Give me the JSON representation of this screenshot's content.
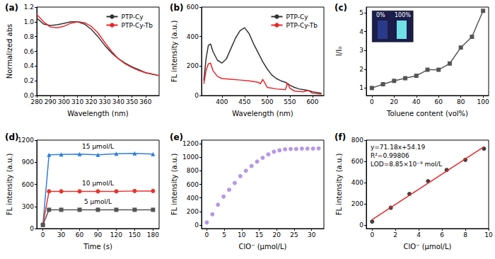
{
  "chart_data": [
    {
      "type": "line",
      "title": "(a)",
      "xlabel": "Wavelength (nm)",
      "ylabel": "Normalized abs",
      "xlim": [
        280,
        370
      ],
      "xticks": [
        280,
        290,
        300,
        310,
        320,
        330,
        340,
        350,
        360
      ],
      "ylim": [
        0,
        1.2
      ],
      "yticks": [
        {
          "value": 0,
          "label": "0.0"
        },
        {
          "value": 0.2,
          "label": "0.2"
        },
        {
          "value": 0.4,
          "label": "0.4"
        },
        {
          "value": 0.6,
          "label": "0.6"
        },
        {
          "value": 0.8,
          "label": "0.8"
        },
        {
          "value": 1.0,
          "label": "1.0"
        },
        {
          "value": 1.2,
          "label": "1.2"
        }
      ],
      "legend": "upper right",
      "grid": false,
      "x": [
        280,
        285,
        290,
        295,
        300,
        305,
        310,
        315,
        320,
        325,
        330,
        335,
        340,
        345,
        350,
        355,
        360,
        365,
        370
      ],
      "series": [
        {
          "name": "PTP-Cy",
          "color": "#333333",
          "marker": "none",
          "values": [
            1.05,
            0.97,
            0.95,
            0.96,
            0.98,
            1.0,
            1.0,
            0.97,
            0.9,
            0.8,
            0.68,
            0.58,
            0.5,
            0.44,
            0.39,
            0.35,
            0.31,
            0.29,
            0.27
          ]
        },
        {
          "name": "PTP-Cy-Tb",
          "color": "#e8262b",
          "marker": "none",
          "values": [
            1.1,
            1.0,
            0.93,
            0.92,
            0.94,
            0.98,
            1.0,
            0.99,
            0.94,
            0.85,
            0.72,
            0.6,
            0.5,
            0.43,
            0.38,
            0.34,
            0.31,
            0.29,
            0.27
          ]
        }
      ]
    },
    {
      "type": "line",
      "title": "(b)",
      "xlabel": "Wavelength (nm)",
      "ylabel": "FL intensity (a.u.)",
      "xlim": [
        355,
        625
      ],
      "xticks": [
        400,
        450,
        500,
        550,
        600
      ],
      "ylim": [
        0,
        600
      ],
      "yticks": [
        0,
        200,
        400,
        600
      ],
      "legend": "upper right",
      "grid": false,
      "series": [
        {
          "name": "PTP-Cy",
          "color": "#333333",
          "marker": "none",
          "x": [
            360,
            365,
            370,
            375,
            380,
            390,
            400,
            410,
            420,
            430,
            440,
            450,
            460,
            470,
            480,
            490,
            500,
            510,
            520,
            530,
            540,
            545,
            550,
            560,
            570,
            580,
            590,
            600,
            610,
            620
          ],
          "values": [
            100,
            250,
            340,
            350,
            300,
            240,
            220,
            250,
            320,
            390,
            440,
            460,
            420,
            350,
            290,
            230,
            180,
            140,
            115,
            100,
            90,
            80,
            70,
            55,
            45,
            40,
            35,
            25,
            20,
            15
          ]
        },
        {
          "name": "PTP-Cy-Tb",
          "color": "#e8262b",
          "marker": "none",
          "x": [
            360,
            365,
            370,
            375,
            380,
            390,
            400,
            420,
            440,
            460,
            480,
            485,
            490,
            495,
            500,
            520,
            540,
            545,
            550,
            560,
            580,
            590,
            600,
            620
          ],
          "values": [
            80,
            170,
            215,
            220,
            170,
            130,
            115,
            110,
            105,
            100,
            90,
            80,
            110,
            85,
            55,
            45,
            40,
            85,
            50,
            30,
            25,
            35,
            15,
            10
          ]
        }
      ]
    },
    {
      "type": "line",
      "title": "(c)",
      "xlabel": "Toluene content (vol%)",
      "ylabel": "I/I₀",
      "xlim": [
        -5,
        105
      ],
      "xticks": [
        0,
        20,
        40,
        60,
        80,
        100
      ],
      "ylim": [
        0.6,
        5.3
      ],
      "yticks": [
        1,
        2,
        3,
        4,
        5
      ],
      "grid": false,
      "inset_labels": [
        "0%",
        "100%"
      ],
      "x": [
        0,
        10,
        20,
        30,
        40,
        50,
        60,
        70,
        80,
        90,
        100
      ],
      "series": [
        {
          "color": "#555555",
          "marker": "square",
          "values": [
            1.0,
            1.2,
            1.38,
            1.52,
            1.65,
            1.97,
            1.97,
            2.3,
            3.15,
            3.72,
            5.1
          ]
        }
      ]
    },
    {
      "type": "line",
      "title": "(d)",
      "xlabel": "Time (s)",
      "ylabel": "FL intensity (a.u.)",
      "xlim": [
        -10,
        190
      ],
      "xticks": [
        0,
        30,
        60,
        90,
        120,
        150,
        180
      ],
      "ylim": [
        0,
        1200
      ],
      "yticks": [
        0,
        300,
        600,
        900,
        1200
      ],
      "grid": false,
      "x": [
        0,
        10,
        30,
        60,
        90,
        120,
        150,
        180
      ],
      "series": [
        {
          "name": "15 μmol/L",
          "color": "#2f7fd8",
          "marker": "triangle",
          "values": [
            50,
            1000,
            1005,
            1010,
            1000,
            1015,
            1020,
            1010
          ]
        },
        {
          "name": "10 μmol/L",
          "color": "#e8332e",
          "marker": "circle",
          "values": [
            50,
            505,
            505,
            505,
            505,
            505,
            510,
            510
          ]
        },
        {
          "name": "5 μmol/L",
          "color": "#555555",
          "marker": "square",
          "values": [
            50,
            255,
            255,
            255,
            255,
            255,
            255,
            255
          ]
        }
      ]
    },
    {
      "type": "scatter",
      "title": "(e)",
      "xlabel": "ClO⁻ (μmol/L)",
      "ylabel": "FL intensity (a.u.)",
      "xlim": [
        -1.5,
        33.5
      ],
      "xticks": [
        0,
        5,
        10,
        15,
        20,
        25,
        30
      ],
      "ylim": [
        -50,
        1250
      ],
      "yticks": [
        0,
        200,
        400,
        600,
        800,
        1000,
        1200
      ],
      "grid": false,
      "x": [
        0,
        1.6,
        3.2,
        4.8,
        6.4,
        8,
        9.6,
        11.2,
        12.8,
        14.4,
        16,
        17.6,
        19.2,
        20.8,
        22.4,
        24,
        25.6,
        27.2,
        28.8,
        30.4,
        32
      ],
      "series": [
        {
          "color": "#a57ee0",
          "marker": "circle",
          "values": [
            40,
            160,
            300,
            420,
            520,
            620,
            720,
            800,
            870,
            935,
            990,
            1040,
            1080,
            1100,
            1115,
            1120,
            1120,
            1125,
            1125,
            1125,
            1128
          ]
        }
      ]
    },
    {
      "type": "scatter",
      "title": "(f)",
      "xlabel": "ClO⁻ (μmol/L)",
      "ylabel": "FL intensity (a.u.)",
      "xlim": [
        -0.5,
        10
      ],
      "xticks": [
        0,
        2,
        4,
        6,
        8,
        10
      ],
      "ylim": [
        -30,
        800
      ],
      "yticks": [
        0,
        200,
        400,
        600,
        800
      ],
      "grid": false,
      "annotations": [
        "y=71.18x+54.19",
        "R²=0.99806",
        "LOD=8.85×10⁻⁹ mol/L"
      ],
      "series": [
        {
          "type": "line",
          "color": "#e8262b",
          "marker": "none",
          "x": [
            0,
            9.6
          ],
          "values": [
            54.19,
            737.5
          ]
        },
        {
          "color": "#111111",
          "marker": "circle",
          "x": [
            0,
            1.6,
            3.2,
            4.8,
            6.4,
            8,
            9.6
          ],
          "values": [
            35,
            165,
            295,
            415,
            520,
            615,
            720
          ]
        }
      ]
    }
  ]
}
